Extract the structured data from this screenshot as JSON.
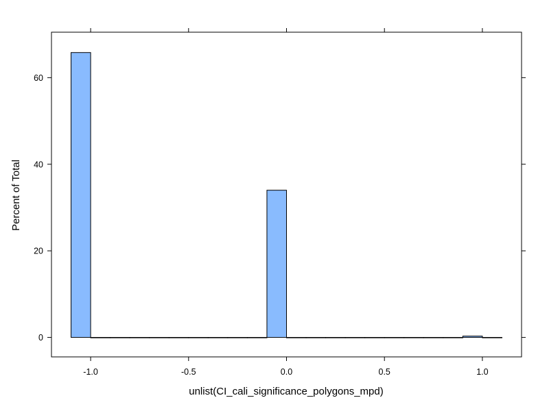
{
  "chart_data": {
    "type": "bar",
    "subtype": "histogram",
    "xlabel": "unlist(CI_cali_significance_polygons_mpd)",
    "ylabel": "Percent of Total",
    "xlim": [
      -1.2,
      1.2
    ],
    "ylim": [
      -4.5,
      70.5
    ],
    "x_ticks": [
      -1.0,
      -0.5,
      0.0,
      0.5,
      1.0
    ],
    "x_tick_labels": [
      "-1.0",
      "-0.5",
      "0.0",
      "0.5",
      "1.0"
    ],
    "y_ticks": [
      0,
      20,
      40,
      60
    ],
    "y_tick_labels": [
      "0",
      "20",
      "40",
      "60"
    ],
    "bin_width": 0.1,
    "bins": [
      {
        "x0": -1.1,
        "x1": -1.0,
        "value": 65.8
      },
      {
        "x0": -1.0,
        "x1": -0.9,
        "value": 0
      },
      {
        "x0": -0.9,
        "x1": -0.8,
        "value": 0
      },
      {
        "x0": -0.8,
        "x1": -0.7,
        "value": 0
      },
      {
        "x0": -0.7,
        "x1": -0.6,
        "value": 0
      },
      {
        "x0": -0.6,
        "x1": -0.5,
        "value": 0
      },
      {
        "x0": -0.5,
        "x1": -0.4,
        "value": 0
      },
      {
        "x0": -0.4,
        "x1": -0.3,
        "value": 0
      },
      {
        "x0": -0.3,
        "x1": -0.2,
        "value": 0
      },
      {
        "x0": -0.2,
        "x1": -0.1,
        "value": 0
      },
      {
        "x0": -0.1,
        "x1": 0.0,
        "value": 34.0
      },
      {
        "x0": 0.0,
        "x1": 0.1,
        "value": 0
      },
      {
        "x0": 0.1,
        "x1": 0.2,
        "value": 0
      },
      {
        "x0": 0.2,
        "x1": 0.3,
        "value": 0
      },
      {
        "x0": 0.3,
        "x1": 0.4,
        "value": 0
      },
      {
        "x0": 0.4,
        "x1": 0.5,
        "value": 0
      },
      {
        "x0": 0.5,
        "x1": 0.6,
        "value": 0
      },
      {
        "x0": 0.6,
        "x1": 0.7,
        "value": 0
      },
      {
        "x0": 0.7,
        "x1": 0.8,
        "value": 0
      },
      {
        "x0": 0.8,
        "x1": 0.9,
        "value": 0
      },
      {
        "x0": 0.9,
        "x1": 1.0,
        "value": 0.3
      },
      {
        "x0": 1.0,
        "x1": 1.1,
        "value": 0
      }
    ],
    "grid": false,
    "colors": {
      "bar_fill": "#89bbfe",
      "bar_stroke": "#000000",
      "frame": "#000000"
    }
  }
}
